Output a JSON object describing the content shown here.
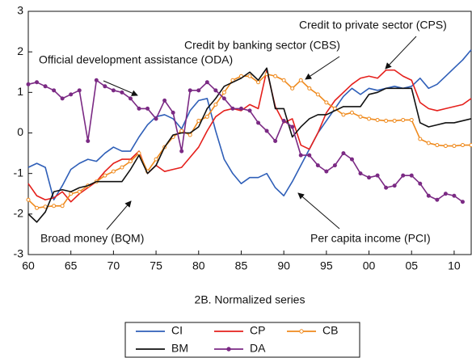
{
  "chart_data": {
    "type": "line",
    "caption": "2B. Normalized series",
    "x": [
      1960,
      1961,
      1962,
      1963,
      1964,
      1965,
      1966,
      1967,
      1968,
      1969,
      1970,
      1971,
      1972,
      1973,
      1974,
      1975,
      1976,
      1977,
      1978,
      1979,
      1980,
      1981,
      1982,
      1983,
      1984,
      1985,
      1986,
      1987,
      1988,
      1989,
      1990,
      1991,
      1992,
      1993,
      1994,
      1995,
      1996,
      1997,
      1998,
      1999,
      2000,
      2001,
      2002,
      2003,
      2004,
      2005,
      2006,
      2007,
      2008,
      2009,
      2010,
      2011,
      2012
    ],
    "xlim": [
      1960,
      2012
    ],
    "xticks": [
      {
        "value": 1960,
        "label": "60"
      },
      {
        "value": 1965,
        "label": "65"
      },
      {
        "value": 1970,
        "label": "70"
      },
      {
        "value": 1975,
        "label": "75"
      },
      {
        "value": 1980,
        "label": "80"
      },
      {
        "value": 1985,
        "label": "85"
      },
      {
        "value": 1990,
        "label": "90"
      },
      {
        "value": 1995,
        "label": "95"
      },
      {
        "value": 2000,
        "label": "00"
      },
      {
        "value": 2005,
        "label": "05"
      },
      {
        "value": 2010,
        "label": "10"
      }
    ],
    "ylim": [
      -3,
      3
    ],
    "yticks": [
      3,
      2,
      1,
      0,
      -1,
      -2,
      -3
    ],
    "series": [
      {
        "name": "CI",
        "color": "#2f5fb8",
        "marker": "none",
        "values": [
          -0.85,
          -0.75,
          -0.85,
          -1.65,
          -1.3,
          -0.9,
          -0.75,
          -0.65,
          -0.7,
          -0.5,
          -0.35,
          -0.45,
          -0.45,
          -0.1,
          0.2,
          0.4,
          0.45,
          0.35,
          0.1,
          0.55,
          0.8,
          0.85,
          0.05,
          -0.65,
          -1.0,
          -1.25,
          -1.1,
          -1.1,
          -1.0,
          -1.35,
          -1.55,
          -1.2,
          -0.8,
          -0.4,
          0.0,
          0.3,
          0.6,
          0.9,
          1.1,
          0.95,
          1.1,
          1.05,
          1.1,
          1.15,
          1.1,
          1.15,
          1.35,
          1.1,
          1.2,
          1.4,
          1.6,
          1.8,
          2.05
        ]
      },
      {
        "name": "CP",
        "color": "#e5201c",
        "marker": "none",
        "values": [
          -1.25,
          -1.55,
          -1.65,
          -1.6,
          -1.45,
          -1.7,
          -1.5,
          -1.35,
          -1.2,
          -0.95,
          -0.75,
          -0.65,
          -0.65,
          -0.45,
          -1.0,
          -0.8,
          -0.95,
          -0.9,
          -0.85,
          -0.6,
          -0.35,
          0.05,
          0.4,
          0.55,
          0.6,
          0.55,
          0.7,
          0.6,
          1.55,
          0.65,
          0.25,
          0.35,
          -0.3,
          -0.4,
          0.0,
          0.5,
          0.8,
          1.0,
          1.2,
          1.35,
          1.4,
          1.35,
          1.55,
          1.55,
          1.4,
          1.3,
          0.75,
          0.6,
          0.55,
          0.6,
          0.65,
          0.7,
          0.85
        ]
      },
      {
        "name": "CB",
        "color": "#ef8a1d",
        "marker": "open",
        "values": [
          -1.65,
          -1.85,
          -1.82,
          -1.8,
          -1.8,
          -1.5,
          -1.45,
          -1.3,
          -1.2,
          -1.05,
          -0.95,
          -0.85,
          -0.7,
          -0.5,
          -0.95,
          -0.65,
          -0.35,
          -0.1,
          0.05,
          -0.05,
          0.3,
          0.4,
          0.7,
          1.0,
          1.3,
          1.4,
          1.4,
          1.25,
          1.45,
          1.4,
          1.3,
          1.1,
          1.3,
          1.1,
          0.95,
          0.75,
          0.6,
          0.45,
          0.5,
          0.4,
          0.35,
          0.32,
          0.3,
          0.3,
          0.32,
          0.32,
          -0.15,
          -0.25,
          -0.3,
          -0.32,
          -0.32,
          -0.3,
          -0.3
        ]
      },
      {
        "name": "BM",
        "color": "#111111",
        "marker": "none",
        "values": [
          -2.0,
          -2.2,
          -1.95,
          -1.45,
          -1.4,
          -1.45,
          -1.35,
          -1.3,
          -1.2,
          -1.2,
          -1.2,
          -1.2,
          -0.9,
          -0.55,
          -1.0,
          -0.8,
          -0.35,
          -0.05,
          0.0,
          0.0,
          0.15,
          0.6,
          0.85,
          1.15,
          1.25,
          1.35,
          1.5,
          1.3,
          1.6,
          0.6,
          0.6,
          -0.1,
          0.15,
          0.35,
          0.45,
          0.45,
          0.55,
          0.65,
          0.65,
          0.65,
          0.95,
          1.0,
          1.1,
          1.1,
          1.1,
          1.1,
          0.25,
          0.15,
          0.2,
          0.25,
          0.25,
          0.3,
          0.35
        ]
      },
      {
        "name": "DA",
        "color": "#7b2a84",
        "marker": "filled",
        "values": [
          1.2,
          1.25,
          1.15,
          1.05,
          0.85,
          0.95,
          1.05,
          -0.2,
          1.3,
          1.15,
          1.05,
          1.0,
          0.85,
          0.6,
          0.6,
          0.35,
          0.8,
          0.5,
          -0.45,
          1.05,
          1.05,
          1.25,
          1.05,
          0.85,
          0.6,
          0.6,
          0.55,
          0.25,
          0.05,
          -0.2,
          0.3,
          0.15,
          -0.55,
          -0.55,
          -0.8,
          -0.95,
          -0.8,
          -0.5,
          -0.65,
          -1.0,
          -1.1,
          -1.05,
          -1.35,
          -1.3,
          -1.05,
          -1.05,
          -1.25,
          -1.55,
          -1.65,
          -1.5,
          -1.55,
          -1.7,
          null
        ]
      }
    ],
    "annotations": [
      "Credit to private sector (CPS)",
      "Credit by banking sector (CBS)",
      "Official development assistance (ODA)",
      "Broad money (BQM)",
      "Per capita income (PCI)"
    ]
  }
}
